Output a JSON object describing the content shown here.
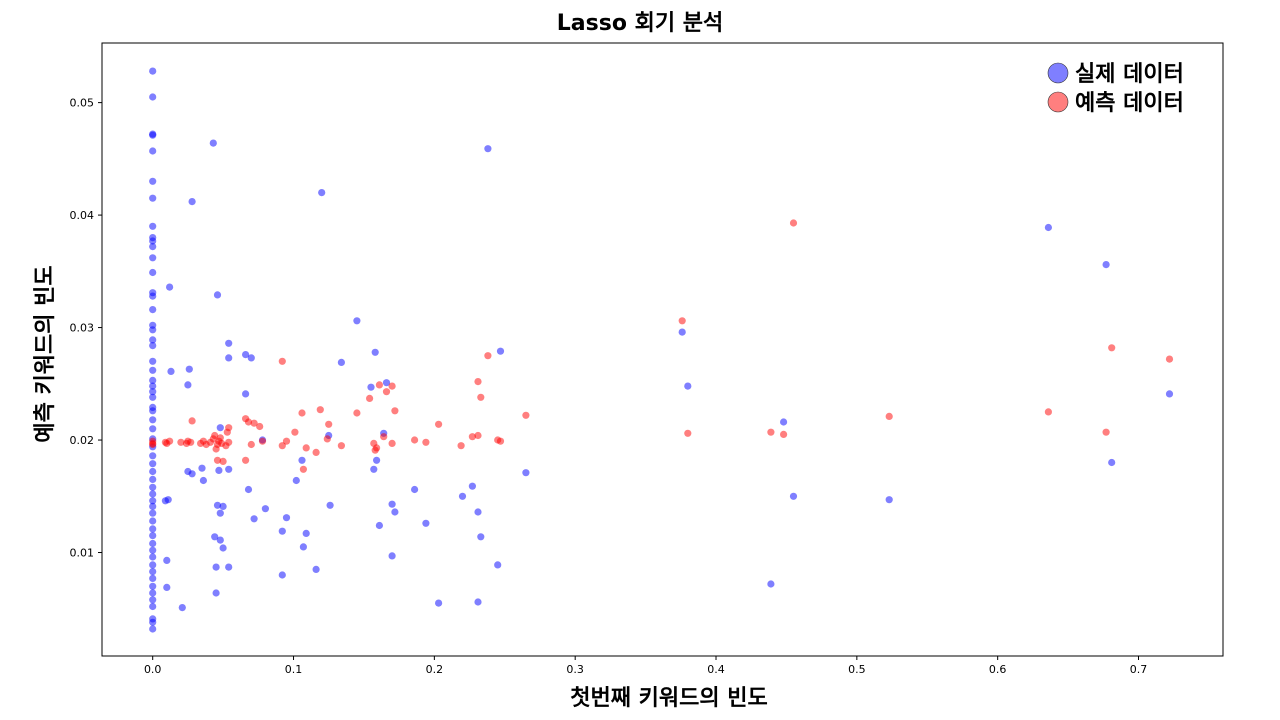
{
  "chart_data": {
    "type": "scatter",
    "title": "Lasso 회기 분석",
    "xlabel": "첫번째 키워드의 빈도",
    "ylabel": "예측 키워드의 빈도",
    "xlim": [
      -0.036,
      0.76
    ],
    "ylim": [
      0.0008,
      0.0553
    ],
    "xticks": [
      0.0,
      0.1,
      0.2,
      0.3,
      0.4,
      0.5,
      0.6,
      0.7
    ],
    "xtick_labels": [
      "0.0",
      "0.1",
      "0.2",
      "0.3",
      "0.4",
      "0.5",
      "0.6",
      "0.7"
    ],
    "yticks": [
      0.01,
      0.02,
      0.03,
      0.04,
      0.05
    ],
    "ytick_labels": [
      "0.01",
      "0.02",
      "0.03",
      "0.04",
      "0.05"
    ],
    "grid": false,
    "legend_position": "top-right",
    "series": [
      {
        "name": "실제 데이터",
        "color": "#0000ff",
        "alpha": 0.5,
        "points": [
          [
            0,
            0.0528
          ],
          [
            0,
            0.0505
          ],
          [
            0,
            0.0472
          ],
          [
            0,
            0.0471
          ],
          [
            0,
            0.0457
          ],
          [
            0,
            0.043
          ],
          [
            0,
            0.0415
          ],
          [
            0,
            0.039
          ],
          [
            0,
            0.038
          ],
          [
            0,
            0.0377
          ],
          [
            0,
            0.0372
          ],
          [
            0,
            0.0362
          ],
          [
            0,
            0.0349
          ],
          [
            0,
            0.0331
          ],
          [
            0,
            0.0328
          ],
          [
            0,
            0.0316
          ],
          [
            0,
            0.0302
          ],
          [
            0,
            0.0298
          ],
          [
            0,
            0.0289
          ],
          [
            0,
            0.0284
          ],
          [
            0,
            0.027
          ],
          [
            0,
            0.0262
          ],
          [
            0,
            0.0253
          ],
          [
            0,
            0.0248
          ],
          [
            0,
            0.0243
          ],
          [
            0,
            0.0238
          ],
          [
            0,
            0.0229
          ],
          [
            0,
            0.0226
          ],
          [
            0,
            0.0218
          ],
          [
            0,
            0.021
          ],
          [
            0,
            0.0201
          ],
          [
            0,
            0.0194
          ],
          [
            0,
            0.0186
          ],
          [
            0,
            0.0179
          ],
          [
            0,
            0.0172
          ],
          [
            0,
            0.0165
          ],
          [
            0,
            0.0158
          ],
          [
            0,
            0.0152
          ],
          [
            0,
            0.0146
          ],
          [
            0,
            0.0141
          ],
          [
            0,
            0.0135
          ],
          [
            0,
            0.0128
          ],
          [
            0,
            0.0121
          ],
          [
            0,
            0.0115
          ],
          [
            0,
            0.0108
          ],
          [
            0,
            0.0102
          ],
          [
            0,
            0.0096
          ],
          [
            0,
            0.0089
          ],
          [
            0,
            0.0083
          ],
          [
            0,
            0.0077
          ],
          [
            0,
            0.007
          ],
          [
            0,
            0.0064
          ],
          [
            0,
            0.0058
          ],
          [
            0,
            0.0052
          ],
          [
            0,
            0.0041
          ],
          [
            0,
            0.0038
          ],
          [
            0,
            0.0032
          ],
          [
            0.009,
            0.0146
          ],
          [
            0.011,
            0.0147
          ],
          [
            0.012,
            0.0336
          ],
          [
            0.013,
            0.0261
          ],
          [
            0.01,
            0.0093
          ],
          [
            0.01,
            0.0069
          ],
          [
            0.021,
            0.0051
          ],
          [
            0.025,
            0.0172
          ],
          [
            0.025,
            0.0249
          ],
          [
            0.026,
            0.0263
          ],
          [
            0.028,
            0.017
          ],
          [
            0.028,
            0.0412
          ],
          [
            0.035,
            0.0175
          ],
          [
            0.036,
            0.0164
          ],
          [
            0.043,
            0.0464
          ],
          [
            0.044,
            0.0114
          ],
          [
            0.045,
            0.0087
          ],
          [
            0.045,
            0.0064
          ],
          [
            0.046,
            0.0142
          ],
          [
            0.046,
            0.0329
          ],
          [
            0.047,
            0.0173
          ],
          [
            0.048,
            0.0135
          ],
          [
            0.048,
            0.0211
          ],
          [
            0.048,
            0.0111
          ],
          [
            0.05,
            0.0141
          ],
          [
            0.05,
            0.0104
          ],
          [
            0.054,
            0.0286
          ],
          [
            0.054,
            0.0174
          ],
          [
            0.054,
            0.0087
          ],
          [
            0.054,
            0.0273
          ],
          [
            0.066,
            0.0241
          ],
          [
            0.066,
            0.0276
          ],
          [
            0.068,
            0.0156
          ],
          [
            0.07,
            0.0273
          ],
          [
            0.072,
            0.013
          ],
          [
            0.078,
            0.02
          ],
          [
            0.08,
            0.0139
          ],
          [
            0.092,
            0.0119
          ],
          [
            0.092,
            0.008
          ],
          [
            0.095,
            0.0131
          ],
          [
            0.102,
            0.0164
          ],
          [
            0.106,
            0.0182
          ],
          [
            0.107,
            0.0105
          ],
          [
            0.109,
            0.0117
          ],
          [
            0.116,
            0.0085
          ],
          [
            0.12,
            0.042
          ],
          [
            0.125,
            0.0204
          ],
          [
            0.126,
            0.0142
          ],
          [
            0.134,
            0.0269
          ],
          [
            0.145,
            0.0306
          ],
          [
            0.155,
            0.0247
          ],
          [
            0.157,
            0.0174
          ],
          [
            0.158,
            0.0278
          ],
          [
            0.159,
            0.0182
          ],
          [
            0.161,
            0.0124
          ],
          [
            0.164,
            0.0206
          ],
          [
            0.166,
            0.0251
          ],
          [
            0.17,
            0.0143
          ],
          [
            0.17,
            0.0097
          ],
          [
            0.172,
            0.0136
          ],
          [
            0.186,
            0.0156
          ],
          [
            0.194,
            0.0126
          ],
          [
            0.203,
            0.0055
          ],
          [
            0.22,
            0.015
          ],
          [
            0.227,
            0.0159
          ],
          [
            0.231,
            0.0136
          ],
          [
            0.231,
            0.0056
          ],
          [
            0.233,
            0.0114
          ],
          [
            0.238,
            0.0459
          ],
          [
            0.245,
            0.0089
          ],
          [
            0.247,
            0.0279
          ],
          [
            0.265,
            0.0171
          ],
          [
            0.376,
            0.0296
          ],
          [
            0.38,
            0.0248
          ],
          [
            0.439,
            0.0072
          ],
          [
            0.448,
            0.0216
          ],
          [
            0.455,
            0.015
          ],
          [
            0.523,
            0.0147
          ],
          [
            0.636,
            0.0389
          ],
          [
            0.677,
            0.0356
          ],
          [
            0.681,
            0.018
          ],
          [
            0.722,
            0.0241
          ]
        ]
      },
      {
        "name": "예측 데이터",
        "color": "#ff0000",
        "alpha": 0.5,
        "points": [
          [
            0,
            0.0199
          ],
          [
            0,
            0.0197
          ],
          [
            0,
            0.0196
          ],
          [
            0.009,
            0.0198
          ],
          [
            0.01,
            0.0197
          ],
          [
            0.012,
            0.0199
          ],
          [
            0.02,
            0.0198
          ],
          [
            0.024,
            0.0197
          ],
          [
            0.025,
            0.0199
          ],
          [
            0.027,
            0.0198
          ],
          [
            0.028,
            0.0217
          ],
          [
            0.034,
            0.0197
          ],
          [
            0.036,
            0.0199
          ],
          [
            0.038,
            0.0196
          ],
          [
            0.041,
            0.0198
          ],
          [
            0.043,
            0.0201
          ],
          [
            0.044,
            0.0204
          ],
          [
            0.045,
            0.0192
          ],
          [
            0.046,
            0.0196
          ],
          [
            0.046,
            0.0182
          ],
          [
            0.047,
            0.0199
          ],
          [
            0.048,
            0.0202
          ],
          [
            0.049,
            0.0197
          ],
          [
            0.05,
            0.0181
          ],
          [
            0.052,
            0.0195
          ],
          [
            0.053,
            0.0207
          ],
          [
            0.054,
            0.0211
          ],
          [
            0.054,
            0.0198
          ],
          [
            0.066,
            0.0219
          ],
          [
            0.066,
            0.0182
          ],
          [
            0.068,
            0.0216
          ],
          [
            0.07,
            0.0196
          ],
          [
            0.072,
            0.0215
          ],
          [
            0.076,
            0.0212
          ],
          [
            0.078,
            0.0199
          ],
          [
            0.092,
            0.027
          ],
          [
            0.092,
            0.0195
          ],
          [
            0.095,
            0.0199
          ],
          [
            0.101,
            0.0207
          ],
          [
            0.106,
            0.0224
          ],
          [
            0.107,
            0.0174
          ],
          [
            0.109,
            0.0193
          ],
          [
            0.116,
            0.0189
          ],
          [
            0.119,
            0.0227
          ],
          [
            0.124,
            0.0201
          ],
          [
            0.125,
            0.0214
          ],
          [
            0.134,
            0.0195
          ],
          [
            0.145,
            0.0224
          ],
          [
            0.154,
            0.0237
          ],
          [
            0.157,
            0.0197
          ],
          [
            0.158,
            0.0191
          ],
          [
            0.159,
            0.0193
          ],
          [
            0.161,
            0.0249
          ],
          [
            0.164,
            0.0203
          ],
          [
            0.166,
            0.0243
          ],
          [
            0.17,
            0.0248
          ],
          [
            0.17,
            0.0197
          ],
          [
            0.172,
            0.0226
          ],
          [
            0.186,
            0.02
          ],
          [
            0.194,
            0.0198
          ],
          [
            0.203,
            0.0214
          ],
          [
            0.219,
            0.0195
          ],
          [
            0.227,
            0.0203
          ],
          [
            0.231,
            0.0252
          ],
          [
            0.231,
            0.0204
          ],
          [
            0.233,
            0.0238
          ],
          [
            0.238,
            0.0275
          ],
          [
            0.245,
            0.02
          ],
          [
            0.247,
            0.0199
          ],
          [
            0.265,
            0.0222
          ],
          [
            0.376,
            0.0306
          ],
          [
            0.38,
            0.0206
          ],
          [
            0.439,
            0.0207
          ],
          [
            0.448,
            0.0205
          ],
          [
            0.455,
            0.0393
          ],
          [
            0.523,
            0.0221
          ],
          [
            0.636,
            0.0225
          ],
          [
            0.677,
            0.0207
          ],
          [
            0.681,
            0.0282
          ],
          [
            0.722,
            0.0272
          ]
        ]
      }
    ]
  }
}
